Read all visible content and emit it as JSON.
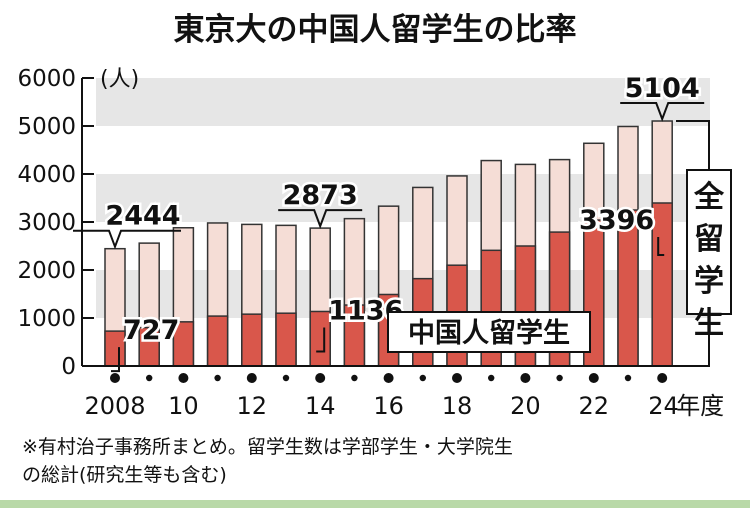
{
  "title": "東京大の中国人留学生の比率",
  "note_line1": "※有村治子事務所まとめ。留学生数は学部学生・大学院生",
  "note_line2": "の総計(研究生等も含む)",
  "colors": {
    "total": "#f5ddd6",
    "chinese": "#d9574b",
    "stroke": "#333333",
    "band": "#e6e6e6"
  },
  "chart_data": {
    "type": "bar",
    "unit_label": "(人)",
    "x_suffix": "年度",
    "categories": [
      2008,
      2009,
      2010,
      2011,
      2012,
      2013,
      2014,
      2015,
      2016,
      2017,
      2018,
      2019,
      2020,
      2021,
      2022,
      2023,
      2024
    ],
    "x_tick_labels": [
      {
        "year": 2008,
        "label": "2008"
      },
      {
        "year": 2010,
        "label": "10"
      },
      {
        "year": 2012,
        "label": "12"
      },
      {
        "year": 2014,
        "label": "14"
      },
      {
        "year": 2016,
        "label": "16"
      },
      {
        "year": 2018,
        "label": "18"
      },
      {
        "year": 2020,
        "label": "20"
      },
      {
        "year": 2022,
        "label": "22"
      },
      {
        "year": 2024,
        "label": "24"
      }
    ],
    "series": [
      {
        "name": "全留学生",
        "values": [
          2444,
          2560,
          2880,
          2980,
          2950,
          2930,
          2873,
          3070,
          3330,
          3720,
          3960,
          4280,
          4200,
          4300,
          4640,
          4990,
          5104
        ]
      },
      {
        "name": "中国人留学生",
        "values": [
          727,
          800,
          920,
          1040,
          1080,
          1100,
          1136,
          1270,
          1490,
          1820,
          2100,
          2410,
          2500,
          2790,
          3040,
          3250,
          3396
        ]
      }
    ],
    "ylim": [
      0,
      6000
    ],
    "yticks": [
      0,
      1000,
      2000,
      3000,
      4000,
      5000,
      6000
    ],
    "annotations": [
      {
        "year": 2008,
        "value": 2444,
        "label": "2444"
      },
      {
        "year": 2008,
        "value": 727,
        "label": "727"
      },
      {
        "year": 2014,
        "value": 2873,
        "label": "2873"
      },
      {
        "year": 2014,
        "value": 1136,
        "label": "1136"
      },
      {
        "year": 2024,
        "value": 5104,
        "label": "5104"
      },
      {
        "year": 2024,
        "value": 3396,
        "label": "3396"
      }
    ]
  }
}
